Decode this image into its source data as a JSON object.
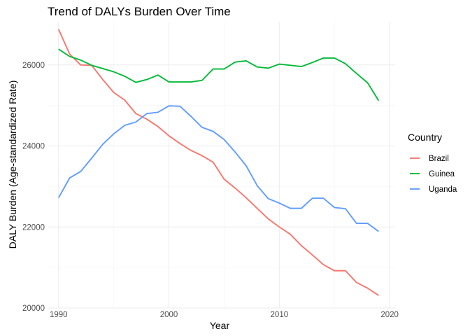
{
  "chart_data": {
    "type": "line",
    "title": "Trend of DALYs Burden Over Time",
    "xlabel": "Year",
    "ylabel": "DALY Burden (Age-standardized Rate)",
    "xlim": [
      1989,
      2020.5
    ],
    "ylim": [
      20000,
      27050
    ],
    "x_ticks": [
      1990,
      2000,
      2010,
      2020
    ],
    "x_tick_labels": [
      "1990",
      "2000",
      "2010",
      "2020"
    ],
    "y_ticks": [
      20000,
      22000,
      24000,
      26000
    ],
    "y_tick_labels": [
      "20000",
      "22000",
      "24000",
      "26000"
    ],
    "grid": true,
    "legend": {
      "title": "Country",
      "position": "right"
    },
    "x": [
      1990,
      1991,
      1992,
      1993,
      1994,
      1995,
      1996,
      1997,
      1998,
      1999,
      2000,
      2001,
      2002,
      2003,
      2004,
      2005,
      2006,
      2007,
      2008,
      2009,
      2010,
      2011,
      2012,
      2013,
      2014,
      2015,
      2016,
      2017,
      2018,
      2019
    ],
    "series": [
      {
        "name": "Brazil",
        "color": "#F8766D",
        "values": [
          26880,
          26270,
          26000,
          25990,
          25640,
          25320,
          25130,
          24800,
          24660,
          24480,
          24250,
          24060,
          23890,
          23760,
          23600,
          23180,
          22960,
          22720,
          22460,
          22200,
          22000,
          21820,
          21540,
          21310,
          21070,
          20920,
          20920,
          20630,
          20490,
          20310
        ]
      },
      {
        "name": "Guinea",
        "color": "#00BA38",
        "values": [
          26390,
          26210,
          26120,
          25990,
          25910,
          25830,
          25720,
          25570,
          25640,
          25750,
          25580,
          25580,
          25580,
          25620,
          25900,
          25900,
          26070,
          26100,
          25950,
          25920,
          26020,
          25990,
          25960,
          26060,
          26170,
          26170,
          26030,
          25790,
          25560,
          25120
        ]
      },
      {
        "name": "Uganda",
        "color": "#619CFF",
        "values": [
          22720,
          23210,
          23370,
          23700,
          24040,
          24300,
          24510,
          24590,
          24800,
          24830,
          24990,
          24980,
          24730,
          24460,
          24360,
          24160,
          23850,
          23510,
          23020,
          22700,
          22590,
          22460,
          22460,
          22710,
          22710,
          22480,
          22450,
          22090,
          22090,
          21890
        ]
      }
    ]
  }
}
